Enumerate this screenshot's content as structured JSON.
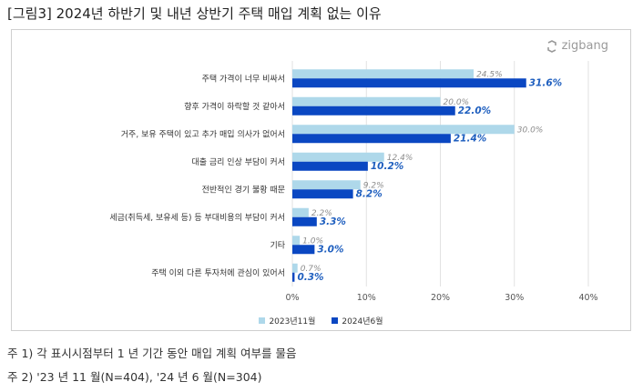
{
  "title": "[그림3] 2024년 하반기 및 내년 상반기 주택 매입 계획 없는 이유",
  "brand": {
    "name": "zigbang",
    "icon": "zigbang-logo-icon"
  },
  "colors": {
    "series_2023": "#aed8ea",
    "series_2024": "#0a47c2",
    "grid": "#e2e2e2"
  },
  "chart_data": {
    "type": "bar",
    "orientation": "horizontal",
    "categories": [
      "주택 가격이 너무 비싸서",
      "향후 가격이 하락할 것 같아서",
      "거주, 보유 주택이 있고 추가 매입 의사가 없어서",
      "대출 금리 인상 부담이 커서",
      "전반적인 경기 불황 때문",
      "세금(취득세, 보유세 등) 등 부대비용의 부담이 커서",
      "기타",
      "주택 이외 다른 투자처에 관심이 있어서"
    ],
    "series": [
      {
        "name": "2023년11월",
        "values": [
          24.5,
          20.0,
          30.0,
          12.4,
          9.2,
          2.2,
          1.0,
          0.7
        ],
        "labels": [
          "24.5%",
          "20.0%",
          "30.0%",
          "12.4%",
          "9.2%",
          "2.2%",
          "1.0%",
          "0.7%"
        ]
      },
      {
        "name": "2024년6월",
        "values": [
          31.6,
          22.0,
          21.4,
          10.2,
          8.2,
          3.3,
          3.0,
          0.3
        ],
        "labels": [
          "31.6%",
          "22.0%",
          "21.4%",
          "10.2%",
          "8.2%",
          "3.3%",
          "3.0%",
          "0.3%"
        ]
      }
    ],
    "xlim": [
      0,
      40
    ],
    "xticks": [
      "0%",
      "10%",
      "20%",
      "30%",
      "40%"
    ],
    "grid": true,
    "legend_position": "bottom"
  },
  "notes": [
    "주 1) 각 표시시점부터 1 년 기간 동안 매입 계획 여부를 물음",
    "주 2) '23 년 11 월(N=404), '24 년 6 월(N=304)"
  ]
}
